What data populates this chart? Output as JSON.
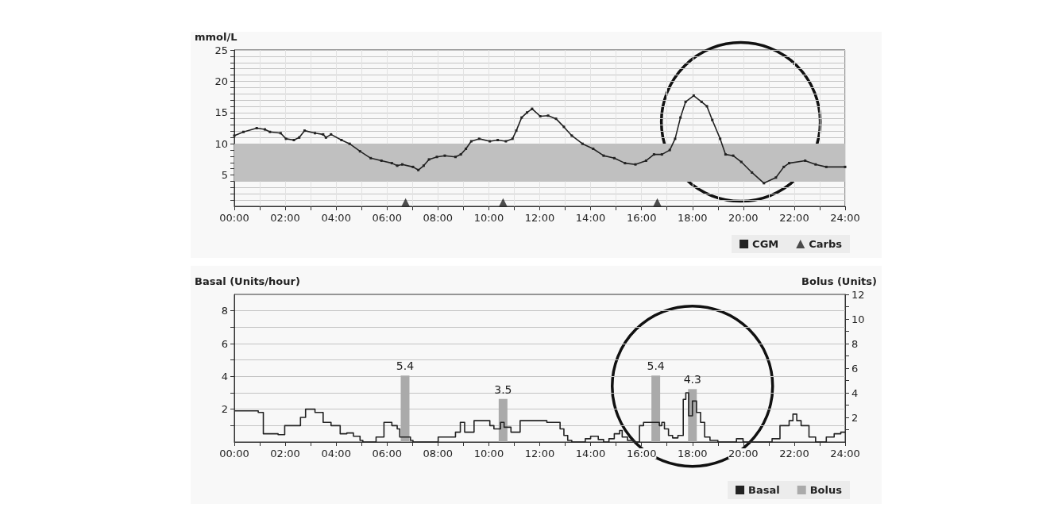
{
  "chart_data": [
    {
      "type": "line",
      "ylabel": "mmol/L",
      "xlim": [
        0,
        24
      ],
      "ylim": [
        0,
        25
      ],
      "xticks": [
        {
          "value": 0,
          "label": "00:00"
        },
        {
          "value": 1,
          "label": null
        },
        {
          "value": 2,
          "label": "02:00"
        },
        {
          "value": 3,
          "label": null
        },
        {
          "value": 4,
          "label": "04:00"
        },
        {
          "value": 5,
          "label": null
        },
        {
          "value": 6,
          "label": "06:00"
        },
        {
          "value": 7,
          "label": null
        },
        {
          "value": 8,
          "label": "08:00"
        },
        {
          "value": 9,
          "label": null
        },
        {
          "value": 10,
          "label": "10:00"
        },
        {
          "value": 11,
          "label": null
        },
        {
          "value": 12,
          "label": "12:00"
        },
        {
          "value": 13,
          "label": null
        },
        {
          "value": 14,
          "label": "14:00"
        },
        {
          "value": 15,
          "label": null
        },
        {
          "value": 16,
          "label": "16:00"
        },
        {
          "value": 17,
          "label": null
        },
        {
          "value": 18,
          "label": "18:00"
        },
        {
          "value": 19,
          "label": null
        },
        {
          "value": 20,
          "label": "20:00"
        },
        {
          "value": 21,
          "label": null
        },
        {
          "value": 22,
          "label": "22:00"
        },
        {
          "value": 23,
          "label": null
        },
        {
          "value": 24,
          "label": "24:00"
        }
      ],
      "yticks": [
        {
          "value": 1,
          "label": null
        },
        {
          "value": 2,
          "label": null
        },
        {
          "value": 3,
          "label": null
        },
        {
          "value": 4,
          "label": null
        },
        5,
        {
          "value": 6,
          "label": null
        },
        {
          "value": 7,
          "label": null
        },
        {
          "value": 8,
          "label": null
        },
        {
          "value": 9,
          "label": null
        },
        10,
        {
          "value": 11,
          "label": null
        },
        {
          "value": 12,
          "label": null
        },
        {
          "value": 13,
          "label": null
        },
        {
          "value": 14,
          "label": null
        },
        15,
        {
          "value": 16,
          "label": null
        },
        {
          "value": 17,
          "label": null
        },
        {
          "value": 18,
          "label": null
        },
        {
          "value": 19,
          "label": null
        },
        20,
        {
          "value": 21,
          "label": null
        },
        {
          "value": 22,
          "label": null
        },
        {
          "value": 23,
          "label": null
        },
        {
          "value": 24,
          "label": null
        },
        25
      ],
      "grid": true,
      "legend": "bottom right",
      "bands": [
        {
          "axis": "y",
          "from": 4,
          "to": 10,
          "color": "#c0c0c0"
        }
      ],
      "series": [
        {
          "name": "CGM",
          "color": "#222222",
          "marker": "square",
          "x": [
            0,
            0.36,
            0.88,
            1.2,
            1.4,
            1.82,
            2.03,
            2.34,
            2.55,
            2.76,
            3.17,
            3.49,
            3.6,
            3.8,
            4.21,
            4.53,
            4.94,
            5.36,
            5.78,
            6.19,
            6.4,
            6.6,
            7.02,
            7.23,
            7.44,
            7.65,
            7.96,
            8.27,
            8.69,
            8.9,
            9.1,
            9.31,
            9.62,
            10.04,
            10.35,
            10.67,
            10.93,
            11.08,
            11.29,
            11.5,
            11.7,
            12.02,
            12.33,
            12.64,
            12.95,
            13.26,
            13.68,
            14.1,
            14.51,
            14.93,
            15.35,
            15.76,
            16.18,
            16.49,
            16.8,
            17.11,
            17.32,
            17.53,
            17.73,
            18.05,
            18.36,
            18.57,
            18.78,
            19.09,
            19.3,
            19.6,
            19.92,
            20.34,
            20.81,
            21.28,
            21.59,
            21.8,
            22.43,
            22.84,
            23.26,
            24
          ],
          "values": [
            11.3,
            11.9,
            12.5,
            12.3,
            11.9,
            11.7,
            10.8,
            10.6,
            11,
            12.1,
            11.7,
            11.5,
            11,
            11.5,
            10.6,
            10,
            8.8,
            7.7,
            7.3,
            6.9,
            6.5,
            6.7,
            6.3,
            5.8,
            6.5,
            7.5,
            7.9,
            8.1,
            7.9,
            8.3,
            9.2,
            10.4,
            10.8,
            10.4,
            10.6,
            10.4,
            10.8,
            12.1,
            14.2,
            15,
            15.6,
            14.4,
            14.5,
            14,
            12.7,
            11.3,
            10,
            9.2,
            8.1,
            7.7,
            6.9,
            6.7,
            7.3,
            8.3,
            8.3,
            9,
            10.8,
            14.2,
            16.7,
            17.7,
            16.7,
            16,
            13.8,
            10.8,
            8.3,
            8.1,
            7.1,
            5.4,
            3.7,
            4.6,
            6.3,
            6.9,
            7.3,
            6.7,
            6.3,
            6.3
          ]
        },
        {
          "name": "Carbs",
          "type": "scatter",
          "color": "#222222",
          "marker": "triangle",
          "x": [
            6.73,
            10.56,
            16.62
          ],
          "values": [
            0.6,
            0.6,
            0.6
          ]
        }
      ]
    },
    {
      "type": "step",
      "ylabel": "Basal (Units/hour)",
      "y2label": "Bolus (Units)",
      "xlim": [
        0,
        24
      ],
      "ylim": [
        0,
        9
      ],
      "y2lim": [
        0,
        12
      ],
      "xticks": [
        {
          "value": 0,
          "label": "00:00"
        },
        {
          "value": 1,
          "label": null
        },
        {
          "value": 2,
          "label": "02:00"
        },
        {
          "value": 3,
          "label": null
        },
        {
          "value": 4,
          "label": "04:00"
        },
        {
          "value": 5,
          "label": null
        },
        {
          "value": 6,
          "label": "06:00"
        },
        {
          "value": 7,
          "label": null
        },
        {
          "value": 8,
          "label": "08:00"
        },
        {
          "value": 9,
          "label": null
        },
        {
          "value": 10,
          "label": "10:00"
        },
        {
          "value": 11,
          "label": null
        },
        {
          "value": 12,
          "label": "12:00"
        },
        {
          "value": 13,
          "label": null
        },
        {
          "value": 14,
          "label": "14:00"
        },
        {
          "value": 15,
          "label": null
        },
        {
          "value": 16,
          "label": "16:00"
        },
        {
          "value": 17,
          "label": null
        },
        {
          "value": 18,
          "label": "18:00"
        },
        {
          "value": 19,
          "label": null
        },
        {
          "value": 20,
          "label": "20:00"
        },
        {
          "value": 21,
          "label": null
        },
        {
          "value": 22,
          "label": "22:00"
        },
        {
          "value": 23,
          "label": null
        },
        {
          "value": 24,
          "label": "24:00"
        }
      ],
      "yticks": [
        {
          "value": 1,
          "label": null
        },
        2,
        {
          "value": 3,
          "label": null
        },
        4,
        {
          "value": 5,
          "label": null
        },
        6,
        {
          "value": 7,
          "label": null
        },
        8
      ],
      "y2ticks": [
        {
          "value": 1,
          "label": null
        },
        2,
        {
          "value": 3,
          "label": null
        },
        4,
        {
          "value": 5,
          "label": null
        },
        6,
        {
          "value": 7,
          "label": null
        },
        8,
        {
          "value": 9,
          "label": null
        },
        10,
        {
          "value": 11,
          "label": null
        },
        12
      ],
      "grid": "y",
      "legend": "bottom right",
      "series": [
        {
          "name": "Basal",
          "color": "#222222",
          "marker": "none",
          "x": [
            0,
            0.94,
            1.14,
            1.72,
            1.98,
            2.6,
            2.8,
            3.17,
            3.49,
            3.8,
            4.16,
            4.42,
            4.68,
            4.94,
            5.05,
            5.57,
            5.88,
            6.19,
            6.4,
            6.5,
            6.92,
            7.02,
            8.01,
            8.69,
            8.88,
            9.05,
            9.42,
            10.04,
            10.2,
            10.46,
            10.6,
            10.87,
            11.23,
            12.28,
            12.8,
            12.95,
            13.1,
            13.26,
            13.79,
            14,
            14.3,
            14.51,
            14.72,
            14.93,
            15.14,
            15.24,
            15.45,
            15.71,
            15.92,
            16.08,
            16.7,
            16.8,
            16.9,
            17.06,
            17.22,
            17.43,
            17.64,
            17.74,
            17.85,
            18,
            18.16,
            18.32,
            18.48,
            18.69,
            19,
            19.73,
            19.99,
            21.13,
            21.44,
            21.8,
            21.95,
            22.1,
            22.27,
            22.58,
            22.84,
            23.26,
            23.57,
            23.83,
            24
          ],
          "values": [
            1.9,
            1.8,
            0.5,
            0.45,
            1,
            1.5,
            2,
            1.8,
            1.2,
            1,
            0.5,
            0.55,
            0.35,
            0.1,
            0,
            0.3,
            1.2,
            1,
            0.8,
            0.3,
            0.1,
            0,
            0.3,
            0.6,
            1.2,
            0.6,
            1.3,
            1,
            0.8,
            1.2,
            0.9,
            0.6,
            1.3,
            1.2,
            0.8,
            0.4,
            0.1,
            0,
            0.2,
            0.35,
            0.15,
            0,
            0.2,
            0.5,
            0.7,
            0.3,
            0.1,
            0,
            1,
            1.2,
            1,
            1.2,
            0.8,
            0.4,
            0.25,
            0.4,
            2.6,
            3,
            1.6,
            2.5,
            1.8,
            1.2,
            0.3,
            0.1,
            0,
            0.2,
            0,
            0.2,
            1,
            1.3,
            1.7,
            1.3,
            1,
            0.3,
            0,
            0.3,
            0.5,
            0.6,
            0.6
          ]
        },
        {
          "name": "Bolus",
          "type": "bar",
          "axis": "y2",
          "color": "#aaaaaa",
          "x": [
            6.71,
            10.56,
            16.56,
            18
          ],
          "values": [
            5.4,
            3.5,
            5.4,
            4.3
          ],
          "value_labels": [
            "5.4",
            "3.5",
            "5.4",
            "4.3"
          ]
        }
      ]
    }
  ]
}
